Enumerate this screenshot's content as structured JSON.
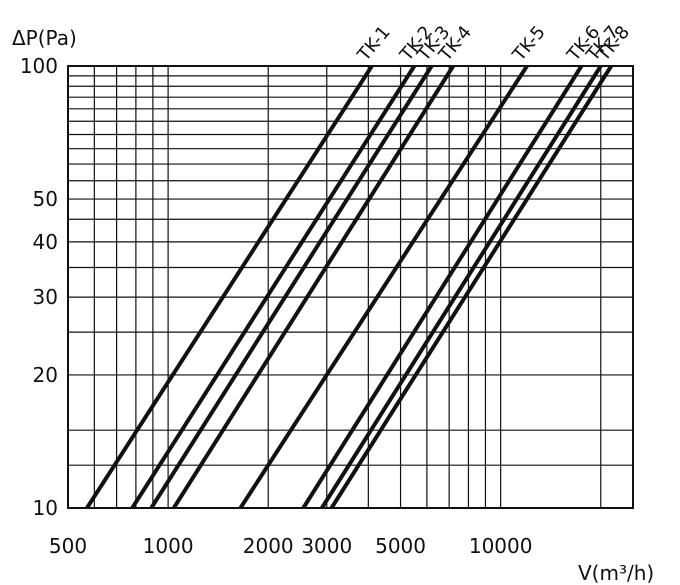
{
  "chart_data": {
    "type": "line",
    "title": "",
    "xlabel": "V(m³/h)",
    "ylabel": "ΔP(Pa)",
    "x_scale": "log",
    "y_scale": "log",
    "xlim": [
      500,
      25000
    ],
    "ylim": [
      10,
      100
    ],
    "grid": true,
    "legend": "none",
    "x_tick_labels": [
      500,
      1000,
      2000,
      3000,
      5000,
      10000
    ],
    "y_tick_labels": [
      10,
      20,
      30,
      40,
      50,
      100
    ],
    "series": [
      {
        "name": "TK-1",
        "x": [
          570,
          4100
        ],
        "y": [
          10,
          100
        ]
      },
      {
        "name": "TK-2",
        "x": [
          780,
          5500
        ],
        "y": [
          10,
          100
        ]
      },
      {
        "name": "TK-3",
        "x": [
          890,
          6200
        ],
        "y": [
          10,
          100
        ]
      },
      {
        "name": "TK-4",
        "x": [
          1040,
          7200
        ],
        "y": [
          10,
          100
        ]
      },
      {
        "name": "TK-5",
        "x": [
          1650,
          12000
        ],
        "y": [
          10,
          100
        ]
      },
      {
        "name": "TK-6",
        "x": [
          2550,
          17500
        ],
        "y": [
          10,
          100
        ]
      },
      {
        "name": "TK-7",
        "x": [
          2900,
          20000
        ],
        "y": [
          10,
          100
        ]
      },
      {
        "name": "TK-8",
        "x": [
          3100,
          21500
        ],
        "y": [
          10,
          100
        ]
      }
    ],
    "colors": {
      "line": "#111111",
      "grid": "#111111",
      "background": "#ffffff"
    }
  }
}
